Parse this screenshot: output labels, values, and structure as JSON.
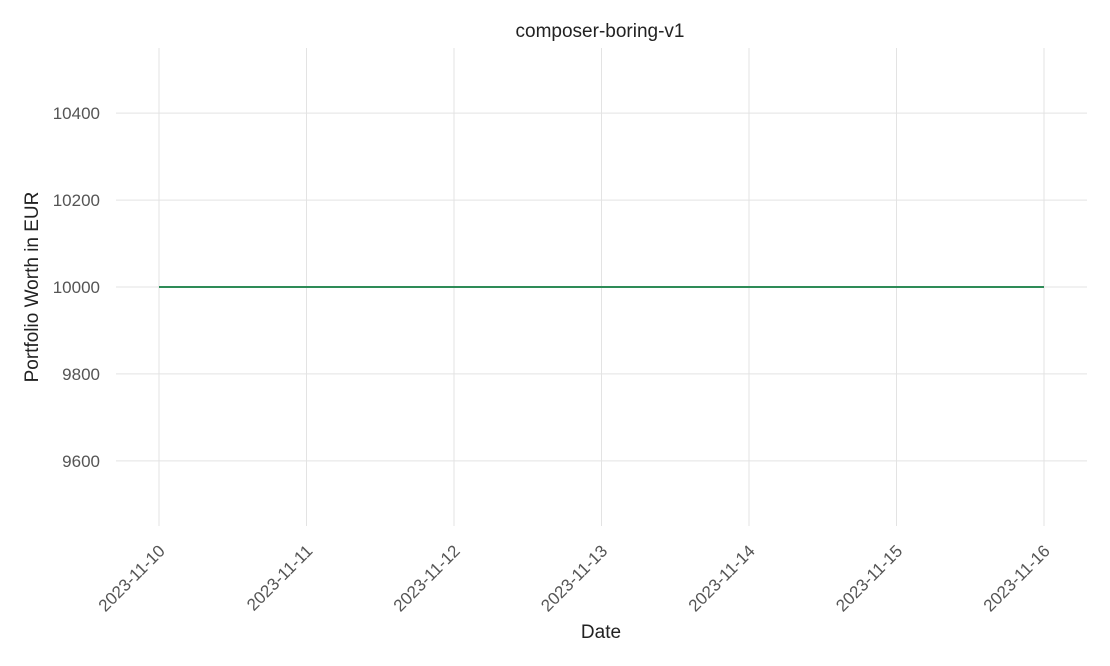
{
  "chart_data": {
    "type": "line",
    "title": "composer-boring-v1",
    "xlabel": "Date",
    "ylabel": "Portfolio Worth in EUR",
    "x": [
      "2023-11-10",
      "2023-11-11",
      "2023-11-12",
      "2023-11-13",
      "2023-11-14",
      "2023-11-15",
      "2023-11-16"
    ],
    "series": [
      {
        "values": [
          10000,
          10000,
          10000,
          10000,
          10000,
          10000,
          10000
        ]
      }
    ],
    "yticks": [
      9600,
      9800,
      10000,
      10200,
      10400
    ],
    "ylim": [
      9450,
      10550
    ],
    "grid": true,
    "line_color": "#2e8b57"
  }
}
